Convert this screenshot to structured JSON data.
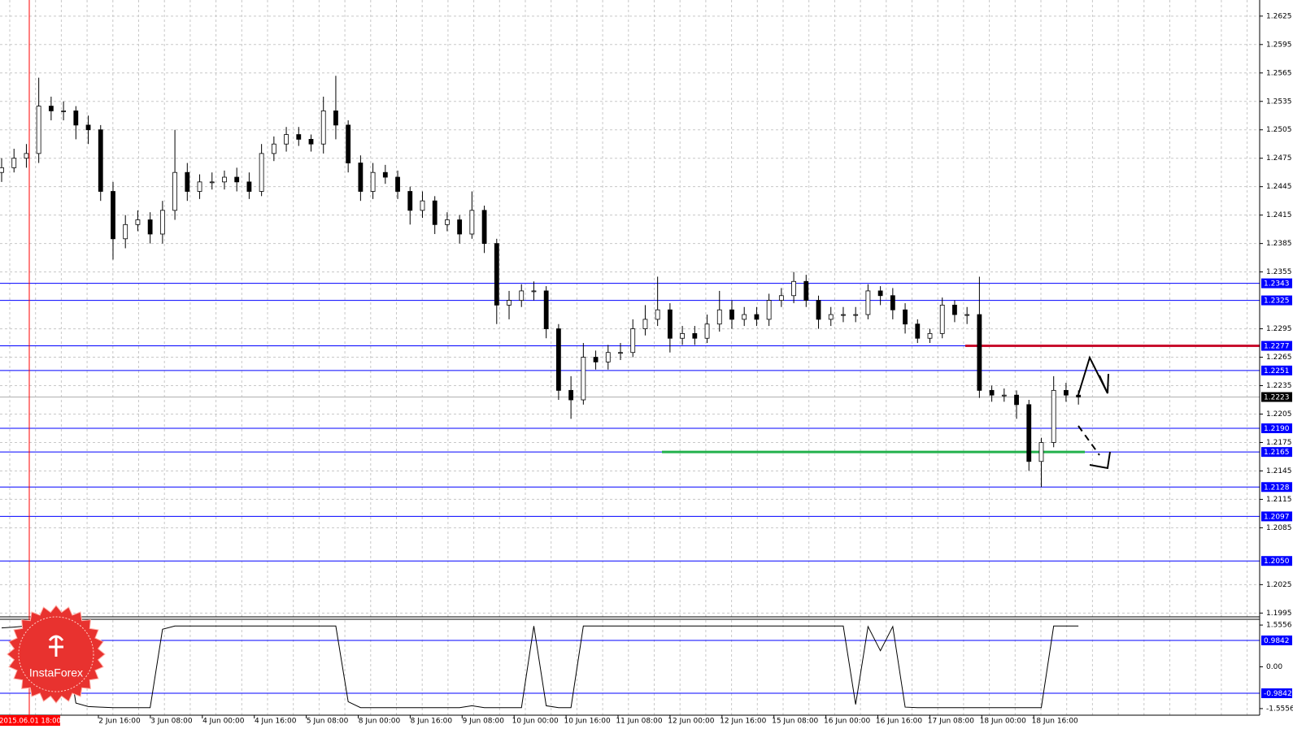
{
  "chart_data": {
    "type": "candlestick",
    "logo": "InstaForex",
    "cursor_label": "2015.06.01 18:00",
    "x_labels": [
      "2 Jun 16:00",
      "3 Jun 08:00",
      "4 Jun 00:00",
      "4 Jun 16:00",
      "5 Jun 08:00",
      "8 Jun 00:00",
      "8 Jun 16:00",
      "9 Jun 08:00",
      "10 Jun 00:00",
      "10 Jun 16:00",
      "11 Jun 08:00",
      "12 Jun 00:00",
      "12 Jun 16:00",
      "15 Jun 08:00",
      "16 Jun 00:00",
      "16 Jun 16:00",
      "17 Jun 08:00",
      "18 Jun 00:00",
      "18 Jun 16:00"
    ],
    "ylim": [
      1.1991,
      1.2642
    ],
    "yticks": [
      1.2625,
      1.2595,
      1.2565,
      1.2535,
      1.2505,
      1.2475,
      1.2445,
      1.2415,
      1.2385,
      1.2355,
      1.2295,
      1.2265,
      1.2235,
      1.2205,
      1.2175,
      1.2145,
      1.2115,
      1.2085,
      1.2025,
      1.1995
    ],
    "grid": true,
    "levels": [
      1.2343,
      1.2325,
      1.2277,
      1.2251,
      {
        "value": 1.219,
        "label": "1.2190"
      },
      1.2165,
      1.2128,
      1.2097,
      {
        "value": 1.205,
        "label": "1.2050"
      }
    ],
    "level_color": "#0000ff",
    "resistance_level": 2,
    "resistance_color": "#c8102e",
    "support_level": 5,
    "support_color": "#22b14c",
    "current_price": 1.2223,
    "open": [
      1.246,
      1.2465,
      1.2475,
      1.248,
      1.253,
      1.2525,
      1.2525,
      1.251,
      1.2505,
      1.244,
      1.239,
      1.2405,
      1.241,
      1.2395,
      1.242,
      1.246,
      1.244,
      1.245,
      1.245,
      1.2455,
      1.245,
      1.244,
      1.248,
      1.249,
      1.25,
      1.2495,
      1.249,
      1.2525,
      1.251,
      1.247,
      1.244,
      1.246,
      1.2455,
      1.244,
      1.242,
      1.243,
      1.2405,
      1.241,
      1.2395,
      1.242,
      1.2385,
      1.232,
      1.2325,
      1.2335,
      1.2335,
      1.2295,
      1.223,
      1.222,
      1.2265,
      1.226,
      1.227,
      1.227,
      1.2295,
      1.2305,
      1.2315,
      1.2285,
      1.229,
      1.2285,
      1.23,
      1.2315,
      1.2305,
      1.231,
      1.2305,
      1.2325,
      1.233,
      1.2345,
      1.2325,
      1.2305,
      1.231,
      1.231,
      1.231,
      1.2335,
      1.233,
      1.2315,
      1.23,
      1.2285,
      1.229,
      1.232,
      1.231,
      1.231,
      1.223,
      1.2225,
      1.2225,
      1.2215,
      1.2155,
      1.2175,
      1.223,
      1.2225
    ],
    "high": [
      1.2475,
      1.2485,
      1.249,
      1.256,
      1.254,
      1.2535,
      1.253,
      1.252,
      1.251,
      1.245,
      1.2415,
      1.242,
      1.2418,
      1.243,
      1.2505,
      1.247,
      1.2458,
      1.246,
      1.2462,
      1.2465,
      1.246,
      1.249,
      1.2498,
      1.2508,
      1.2508,
      1.25,
      1.254,
      1.2562,
      1.2515,
      1.2478,
      1.247,
      1.2468,
      1.2462,
      1.2445,
      1.244,
      1.2435,
      1.2418,
      1.2415,
      1.244,
      1.2425,
      1.239,
      1.2335,
      1.2342,
      1.2345,
      1.234,
      1.23,
      1.2245,
      1.228,
      1.2272,
      1.2278,
      1.228,
      1.2305,
      1.232,
      1.235,
      1.2322,
      1.2298,
      1.2298,
      1.231,
      1.2335,
      1.2325,
      1.2318,
      1.2318,
      1.2332,
      1.2338,
      1.2355,
      1.2352,
      1.233,
      1.2318,
      1.2318,
      1.2318,
      1.2342,
      1.234,
      1.2338,
      1.2322,
      1.2305,
      1.2295,
      1.2328,
      1.2325,
      1.2318,
      1.235,
      1.2235,
      1.2232,
      1.223,
      1.222,
      1.218,
      1.2245,
      1.2238,
      1.223
    ],
    "low": [
      1.245,
      1.246,
      1.2465,
      1.247,
      1.2515,
      1.2515,
      1.2495,
      1.249,
      1.243,
      1.2368,
      1.238,
      1.2398,
      1.2385,
      1.2385,
      1.241,
      1.243,
      1.2432,
      1.2442,
      1.2442,
      1.244,
      1.2432,
      1.2435,
      1.2472,
      1.2482,
      1.2488,
      1.2482,
      1.248,
      1.2495,
      1.246,
      1.243,
      1.2432,
      1.2448,
      1.2432,
      1.2405,
      1.2412,
      1.2395,
      1.2398,
      1.2385,
      1.239,
      1.2375,
      1.23,
      1.2305,
      1.2318,
      1.2325,
      1.2285,
      1.222,
      1.22,
      1.2215,
      1.2252,
      1.2252,
      1.2262,
      1.2265,
      1.2288,
      1.2298,
      1.227,
      1.2278,
      1.2278,
      1.228,
      1.2292,
      1.2295,
      1.2298,
      1.2298,
      1.2298,
      1.2318,
      1.2322,
      1.2318,
      1.2295,
      1.2298,
      1.2302,
      1.2302,
      1.2305,
      1.232,
      1.2305,
      1.229,
      1.228,
      1.228,
      1.2285,
      1.2302,
      1.23,
      1.2222,
      1.2218,
      1.2218,
      1.22,
      1.2145,
      1.2128,
      1.217,
      1.2218,
      1.2215
    ],
    "close": [
      1.2465,
      1.2475,
      1.248,
      1.253,
      1.2525,
      1.2525,
      1.251,
      1.2505,
      1.244,
      1.239,
      1.2405,
      1.241,
      1.2395,
      1.242,
      1.246,
      1.244,
      1.245,
      1.245,
      1.2455,
      1.245,
      1.244,
      1.248,
      1.249,
      1.25,
      1.2495,
      1.249,
      1.2525,
      1.251,
      1.247,
      1.244,
      1.246,
      1.2455,
      1.244,
      1.242,
      1.243,
      1.2405,
      1.241,
      1.2395,
      1.242,
      1.2385,
      1.232,
      1.2325,
      1.2335,
      1.2335,
      1.2295,
      1.223,
      1.222,
      1.2265,
      1.226,
      1.227,
      1.227,
      1.2295,
      1.2305,
      1.2315,
      1.2285,
      1.229,
      1.2285,
      1.23,
      1.2315,
      1.2305,
      1.231,
      1.2305,
      1.2325,
      1.233,
      1.2345,
      1.2325,
      1.2305,
      1.231,
      1.231,
      1.231,
      1.2335,
      1.233,
      1.2315,
      1.23,
      1.2285,
      1.229,
      1.232,
      1.231,
      1.231,
      1.223,
      1.2225,
      1.2225,
      1.2215,
      1.2155,
      1.2175,
      1.223,
      1.2225,
      1.2223
    ],
    "indicator": {
      "type": "line",
      "ylim": [
        -1.77,
        1.74
      ],
      "yticks": [
        1.5556,
        {
          "value": 0,
          "label": "0.00"
        },
        -1.5556
      ],
      "levels": [
        0.9842,
        -0.9842
      ],
      "values": [
        1.45,
        1.48,
        1.52,
        1.5,
        1.52,
        1.5,
        -1.35,
        -1.48,
        -1.5,
        -1.52,
        -1.52,
        -1.52,
        -1.52,
        1.4,
        1.52,
        1.52,
        1.52,
        1.52,
        1.52,
        1.52,
        1.52,
        1.52,
        1.52,
        1.52,
        1.52,
        1.52,
        1.52,
        1.52,
        -1.3,
        -1.52,
        -1.52,
        -1.52,
        -1.52,
        -1.52,
        -1.52,
        -1.52,
        -1.52,
        -1.52,
        -1.45,
        -1.52,
        -1.52,
        -1.52,
        -1.52,
        1.52,
        -1.45,
        -1.52,
        -1.52,
        1.52,
        1.52,
        1.52,
        1.52,
        1.52,
        1.52,
        1.52,
        1.52,
        1.52,
        1.52,
        1.52,
        1.52,
        1.52,
        1.52,
        1.52,
        1.52,
        1.52,
        1.52,
        1.52,
        1.52,
        1.52,
        1.52,
        -1.4,
        1.5,
        0.6,
        1.5,
        -1.5,
        -1.52,
        -1.52,
        -1.52,
        -1.52,
        -1.52,
        -1.52,
        -1.52,
        -1.52,
        -1.52,
        -1.52,
        -1.52,
        1.52,
        1.52,
        1.52
      ]
    }
  }
}
